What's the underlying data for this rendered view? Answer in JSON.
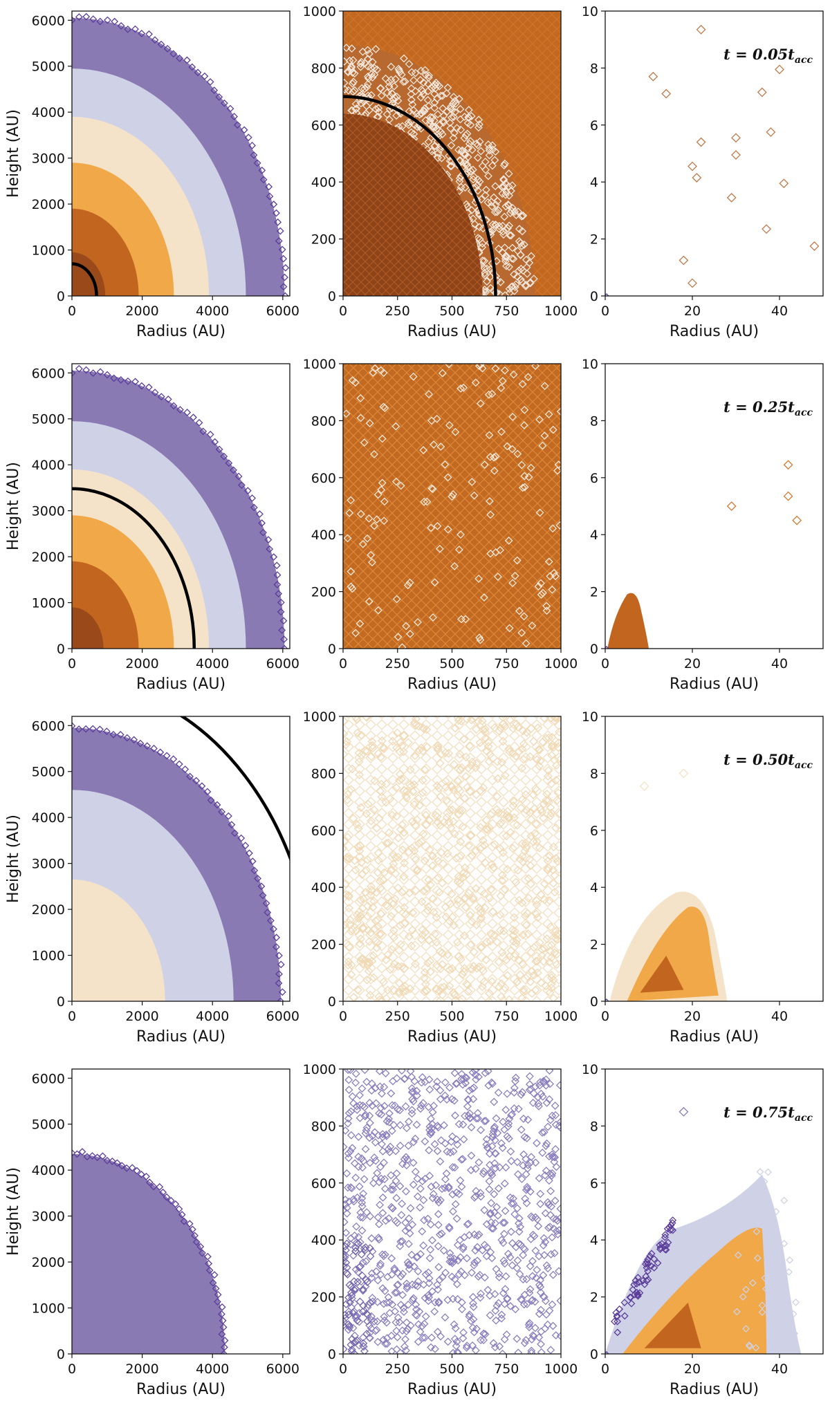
{
  "chart_data": {
    "type": "scatter",
    "description_units": "Radius (AU) vs Height (AU), 4 epochs x 3 zoom levels",
    "colors": {
      "dark_brown": "#9a4a1a",
      "brown": "#c2661f",
      "orange": "#f0a848",
      "cream": "#f4e3c8",
      "lavender": "#cfd1e6",
      "purple": "#8a7ab4",
      "dark_purple": "#5b3d9a",
      "circle": "#000000"
    },
    "xlabel": "Radius (AU)",
    "ylabel": "Height (AU)",
    "columns": [
      {
        "xlim": [
          0,
          6200
        ],
        "ylim": [
          0,
          6200
        ],
        "xticks": [
          0,
          2000,
          4000,
          6000
        ],
        "yticks": [
          0,
          1000,
          2000,
          3000,
          4000,
          5000,
          6000
        ]
      },
      {
        "xlim": [
          0,
          1000
        ],
        "ylim": [
          0,
          1000
        ],
        "xticks": [
          0,
          250,
          500,
          750,
          1000
        ],
        "yticks": [
          0,
          200,
          400,
          600,
          800,
          1000
        ]
      },
      {
        "xlim": [
          0,
          50
        ],
        "ylim": [
          0,
          10
        ],
        "xticks": [
          0,
          20,
          40
        ],
        "yticks": [
          0,
          2,
          4,
          6,
          8,
          10
        ]
      }
    ],
    "rows": [
      {
        "time_label": "t = 0.05t",
        "time_sub": "acc",
        "large_scale_shells": [
          {
            "r_outer": 6050,
            "color": "purple"
          },
          {
            "r_outer": 4950,
            "color": "lavender"
          },
          {
            "r_outer": 3900,
            "color": "cream"
          },
          {
            "r_outer": 2900,
            "color": "orange"
          },
          {
            "r_outer": 1900,
            "color": "brown"
          },
          {
            "r_outer": 950,
            "color": "dark_brown"
          }
        ],
        "infall_radius_au": 700,
        "middle_fill": {
          "inner": "dark_brown",
          "outer": "brown",
          "boundary_au": 1000
        },
        "inner_points": [
          {
            "x": 11,
            "y": 7.7
          },
          {
            "x": 14,
            "y": 7.1
          },
          {
            "x": 22,
            "y": 9.35
          },
          {
            "x": 22,
            "y": 5.4
          },
          {
            "x": 20,
            "y": 4.55
          },
          {
            "x": 21,
            "y": 4.15
          },
          {
            "x": 30,
            "y": 5.55
          },
          {
            "x": 30,
            "y": 4.95
          },
          {
            "x": 36,
            "y": 7.15
          },
          {
            "x": 38,
            "y": 5.75
          },
          {
            "x": 40,
            "y": 7.95
          },
          {
            "x": 41,
            "y": 3.95
          },
          {
            "x": 29,
            "y": 3.45
          },
          {
            "x": 37,
            "y": 2.35
          },
          {
            "x": 48,
            "y": 1.75
          },
          {
            "x": 18,
            "y": 1.25
          },
          {
            "x": 20,
            "y": 0.45
          }
        ]
      },
      {
        "time_label": "t = 0.25t",
        "time_sub": "acc",
        "large_scale_shells": [
          {
            "r_outer": 6050,
            "color": "purple"
          },
          {
            "r_outer": 4950,
            "color": "lavender"
          },
          {
            "r_outer": 3900,
            "color": "cream"
          },
          {
            "r_outer": 2900,
            "color": "orange"
          },
          {
            "r_outer": 1900,
            "color": "brown"
          },
          {
            "r_outer": 900,
            "color": "dark_brown"
          }
        ],
        "infall_radius_au": 3480,
        "middle_fill": {
          "inner": "brown",
          "outer": "brown",
          "boundary_au": 1000
        },
        "inner_points": [
          {
            "x": 42,
            "y": 6.45
          },
          {
            "x": 42,
            "y": 5.35
          },
          {
            "x": 44,
            "y": 4.5
          },
          {
            "x": 29,
            "y": 5.0
          }
        ]
      },
      {
        "time_label": "t = 0.50t",
        "time_sub": "acc",
        "large_scale_shells": [
          {
            "r_outer": 5950,
            "color": "purple"
          },
          {
            "r_outer": 4600,
            "color": "lavender"
          },
          {
            "r_outer": 2650,
            "color": "cream"
          }
        ],
        "infall_radius_au": 6950,
        "middle_fill": {
          "inner": "cream",
          "outer": "cream",
          "boundary_au": 1000
        },
        "inner_points": [
          {
            "x": 9,
            "y": 7.55
          },
          {
            "x": 18,
            "y": 8.0
          }
        ]
      },
      {
        "time_label": "t = 0.75t",
        "time_sub": "acc",
        "large_scale_shells": [
          {
            "r_outer": 4350,
            "color": "purple"
          }
        ],
        "infall_radius_au": null,
        "middle_fill": {
          "inner": "purple",
          "outer": "purple",
          "boundary_au": 1000
        },
        "inner_points": [
          {
            "x": 18,
            "y": 8.5
          }
        ]
      }
    ]
  }
}
